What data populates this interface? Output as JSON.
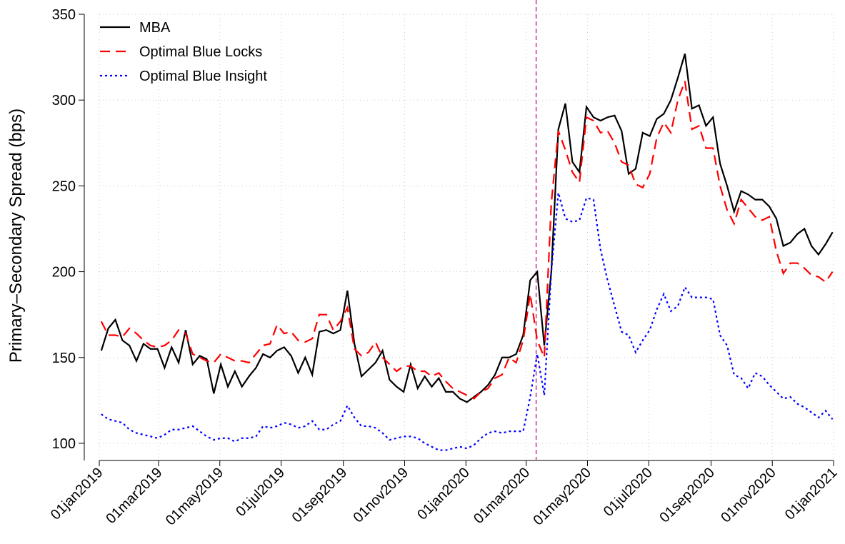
{
  "chart_data": {
    "type": "line",
    "ylabel": "Primary–Secondary Spread (bps)",
    "x": [
      "2019-01-03",
      "2019-01-10",
      "2019-01-17",
      "2019-01-24",
      "2019-01-31",
      "2019-02-07",
      "2019-02-14",
      "2019-02-21",
      "2019-02-28",
      "2019-03-07",
      "2019-03-14",
      "2019-03-21",
      "2019-03-28",
      "2019-04-04",
      "2019-04-11",
      "2019-04-18",
      "2019-04-25",
      "2019-05-02",
      "2019-05-09",
      "2019-05-16",
      "2019-05-23",
      "2019-05-30",
      "2019-06-06",
      "2019-06-13",
      "2019-06-20",
      "2019-06-27",
      "2019-07-04",
      "2019-07-11",
      "2019-07-18",
      "2019-07-25",
      "2019-08-01",
      "2019-08-08",
      "2019-08-15",
      "2019-08-22",
      "2019-08-29",
      "2019-09-05",
      "2019-09-12",
      "2019-09-19",
      "2019-09-26",
      "2019-10-03",
      "2019-10-10",
      "2019-10-17",
      "2019-10-24",
      "2019-10-31",
      "2019-11-07",
      "2019-11-14",
      "2019-11-21",
      "2019-11-28",
      "2019-12-05",
      "2019-12-12",
      "2019-12-19",
      "2019-12-26",
      "2020-01-02",
      "2020-01-09",
      "2020-01-16",
      "2020-01-23",
      "2020-01-30",
      "2020-02-06",
      "2020-02-13",
      "2020-02-20",
      "2020-02-27",
      "2020-03-05",
      "2020-03-12",
      "2020-03-19",
      "2020-03-26",
      "2020-04-02",
      "2020-04-09",
      "2020-04-16",
      "2020-04-23",
      "2020-04-30",
      "2020-05-07",
      "2020-05-14",
      "2020-05-21",
      "2020-05-28",
      "2020-06-04",
      "2020-06-11",
      "2020-06-18",
      "2020-06-25",
      "2020-07-02",
      "2020-07-09",
      "2020-07-16",
      "2020-07-23",
      "2020-07-30",
      "2020-08-06",
      "2020-08-13",
      "2020-08-20",
      "2020-08-27",
      "2020-09-03",
      "2020-09-10",
      "2020-09-17",
      "2020-09-24",
      "2020-10-01",
      "2020-10-08",
      "2020-10-15",
      "2020-10-22",
      "2020-10-29",
      "2020-11-05",
      "2020-11-12",
      "2020-11-19",
      "2020-11-26",
      "2020-12-03",
      "2020-12-10",
      "2020-12-17",
      "2020-12-24",
      "2020-12-31"
    ],
    "series": [
      {
        "name": "MBA",
        "color": "#000000",
        "dash": "solid",
        "values": [
          154,
          167,
          172,
          160,
          157,
          148,
          158,
          155,
          155,
          144,
          156,
          147,
          166,
          146,
          151,
          149,
          129,
          146,
          133,
          142,
          133,
          139,
          144,
          152,
          150,
          154,
          156,
          151,
          141,
          150,
          140,
          165,
          166,
          164,
          166,
          189,
          158,
          139,
          143,
          147,
          154,
          137,
          133,
          130,
          146,
          132,
          139,
          133,
          138,
          130,
          130,
          126,
          124,
          127,
          130,
          134,
          140,
          150,
          150,
          152,
          163,
          195,
          200,
          157,
          200,
          283,
          298,
          264,
          258,
          296,
          290,
          288,
          290,
          291,
          282,
          257,
          260,
          281,
          279,
          289,
          292,
          300,
          313,
          327,
          295,
          297,
          285,
          290,
          263,
          250,
          235,
          247,
          245,
          242,
          242,
          238,
          231,
          215,
          217,
          222,
          225,
          215,
          210,
          216,
          223
        ]
      },
      {
        "name": "Optimal Blue Locks",
        "color": "#ff0000",
        "dash": "dashed",
        "values": [
          171,
          163,
          163,
          162,
          167,
          164,
          160,
          157,
          156,
          157,
          160,
          166,
          164,
          152,
          150,
          148,
          147,
          152,
          150,
          148,
          148,
          147,
          152,
          157,
          158,
          169,
          164,
          165,
          160,
          159,
          161,
          175,
          175,
          166,
          171,
          179,
          155,
          151,
          153,
          159,
          150,
          146,
          142,
          145,
          145,
          142,
          142,
          139,
          141,
          136,
          132,
          130,
          128,
          126,
          130,
          132,
          138,
          140,
          150,
          147,
          160,
          187,
          160,
          150,
          240,
          282,
          271,
          258,
          252,
          290,
          288,
          281,
          282,
          275,
          264,
          262,
          251,
          249,
          257,
          278,
          287,
          281,
          300,
          311,
          283,
          285,
          272,
          272,
          250,
          236,
          228,
          242,
          237,
          232,
          230,
          232,
          212,
          199,
          205,
          205,
          202,
          198,
          197,
          194,
          200
        ]
      },
      {
        "name": "Optimal Blue Insight",
        "color": "#0000ff",
        "dash": "dotted",
        "values": [
          117,
          114,
          113,
          112,
          108,
          106,
          105,
          104,
          103,
          105,
          108,
          108,
          109,
          110,
          107,
          104,
          102,
          103,
          103,
          101,
          103,
          103,
          104,
          110,
          109,
          110,
          112,
          111,
          109,
          110,
          113,
          108,
          108,
          111,
          113,
          122,
          115,
          110,
          110,
          109,
          106,
          102,
          103,
          104,
          104,
          103,
          100,
          98,
          96,
          96,
          97,
          98,
          97,
          99,
          103,
          106,
          107,
          106,
          107,
          107,
          107,
          127,
          152,
          128,
          200,
          246,
          231,
          229,
          230,
          243,
          242,
          213,
          195,
          180,
          165,
          163,
          153,
          160,
          166,
          178,
          187,
          177,
          180,
          191,
          185,
          185,
          185,
          184,
          163,
          157,
          140,
          138,
          132,
          141,
          139,
          134,
          130,
          126,
          127,
          123,
          121,
          118,
          115,
          119,
          114
        ]
      }
    ],
    "xlim": [
      "2019-01-01",
      "2021-01-01"
    ],
    "xticks": [
      {
        "value": "2019-01-01",
        "label": "01jan2019"
      },
      {
        "value": "2019-03-01",
        "label": "01mar2019"
      },
      {
        "value": "2019-05-01",
        "label": "01may2019"
      },
      {
        "value": "2019-07-01",
        "label": "01jul2019"
      },
      {
        "value": "2019-09-01",
        "label": "01sep2019"
      },
      {
        "value": "2019-11-01",
        "label": "01nov2019"
      },
      {
        "value": "2020-01-01",
        "label": "01jan2020"
      },
      {
        "value": "2020-03-01",
        "label": "01mar2020"
      },
      {
        "value": "2020-05-01",
        "label": "01may2020"
      },
      {
        "value": "2020-07-01",
        "label": "01jul2020"
      },
      {
        "value": "2020-09-01",
        "label": "01sep2020"
      },
      {
        "value": "2020-11-01",
        "label": "01nov2020"
      },
      {
        "value": "2021-01-01",
        "label": "01jan2021"
      }
    ],
    "ylim": [
      90,
      350
    ],
    "yticks": [
      100,
      150,
      200,
      250,
      300,
      350
    ],
    "grid": true,
    "legend": "top-left",
    "vline": {
      "x": "2020-03-11",
      "color": "#d06aa8"
    }
  }
}
